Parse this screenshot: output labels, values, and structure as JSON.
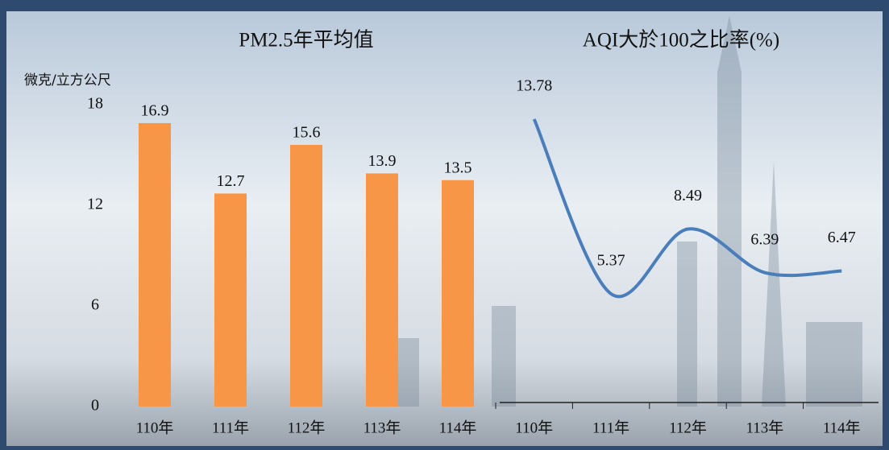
{
  "chart_data": [
    {
      "type": "bar",
      "title": "PM2.5年平均值",
      "y_label": "微克/立方公尺",
      "categories": [
        "110年",
        "111年",
        "112年",
        "113年",
        "114年"
      ],
      "values": [
        16.9,
        12.7,
        15.6,
        13.9,
        13.5
      ],
      "color": "#f79646",
      "ylim": [
        0,
        18
      ],
      "yticks": [
        0,
        6,
        12,
        18
      ]
    },
    {
      "type": "line",
      "title": "AQI大於100之比率(%)",
      "categories": [
        "110年",
        "111年",
        "112年",
        "113年",
        "114年"
      ],
      "values": [
        13.78,
        5.37,
        8.49,
        6.39,
        6.47
      ],
      "color": "#4a7ebb"
    }
  ]
}
